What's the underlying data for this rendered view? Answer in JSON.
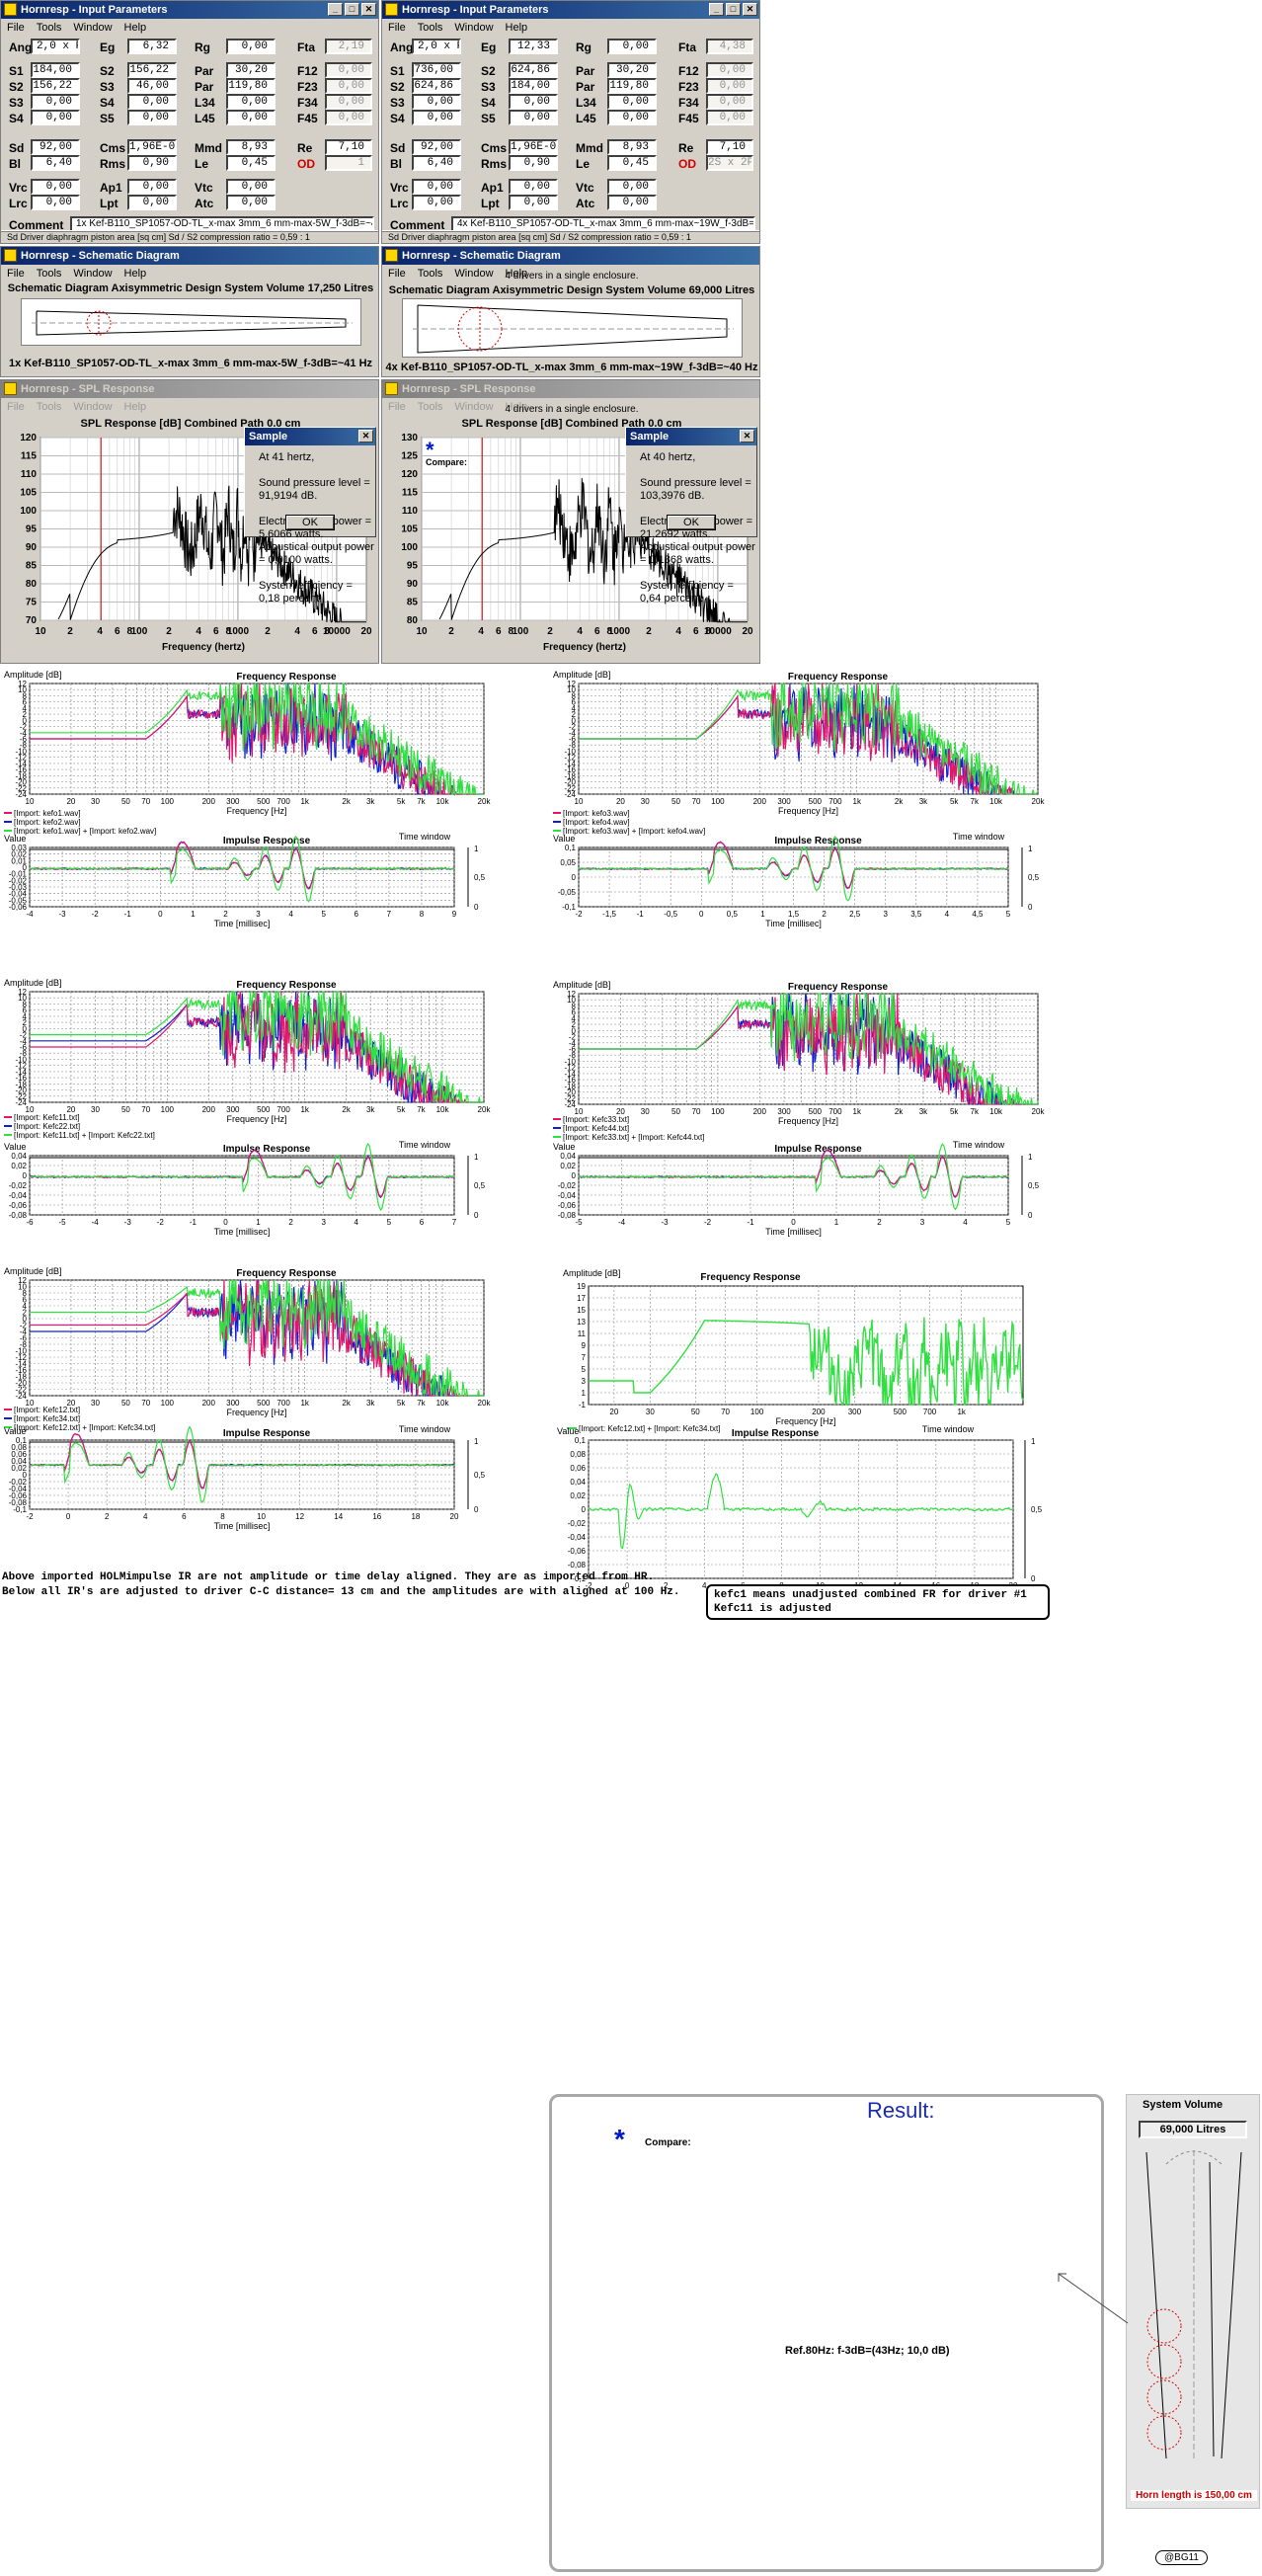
{
  "input_left": {
    "title": "Hornresp - Input Parameters",
    "menu": [
      "File",
      "Tools",
      "Window",
      "Help"
    ],
    "fields": {
      "Ang": "2,0 x Pi",
      "Eg": "6,32",
      "Rg": "0,00",
      "Fta": "2,19",
      "S1": "184,00",
      "S2b": "156,22",
      "Par1": "30,20",
      "F12": "0,00",
      "S2": "156,22",
      "S3": "46,00",
      "Par2": "119,80",
      "F23": "0,00",
      "S3r": "0,00",
      "S4": "0,00",
      "L34": "0,00",
      "F34": "0,00",
      "S4r": "0,00",
      "S5": "0,00",
      "L45": "0,00",
      "F45": "0,00",
      "Sd": "92,00",
      "Cms": "1,96E-03",
      "Mmd": "8,93",
      "Re": "7,10",
      "Bl": "6,40",
      "Rms": "0,90",
      "Le": "0,45",
      "OD": "1",
      "Vrc": "0,00",
      "Ap1": "0,00",
      "Vtc": "0,00",
      "Lrc": "0,00",
      "Lpt": "0,00",
      "Atc": "0,00"
    },
    "comment": "1x Kef-B110_SP1057-OD-TL_x-max 3mm_6 mm-max-5W_f-3dB=~41 Hz",
    "status": "Sd  Driver diaphragm piston area  [sq cm]   Sd / S2 compression ratio = 0,59 : 1"
  },
  "input_right": {
    "title": "Hornresp - Input Parameters",
    "menu": [
      "File",
      "Tools",
      "Window",
      "Help"
    ],
    "fields": {
      "Ang": "2,0 x Pi",
      "Eg": "12,33",
      "Rg": "0,00",
      "Fta": "4,38",
      "S1": "736,00",
      "S2b": "624,86",
      "Par1": "30,20",
      "F12": "0,00",
      "S2": "624,86",
      "S3": "184,00",
      "Par2": "119,80",
      "F23": "0,00",
      "S3r": "0,00",
      "S4": "0,00",
      "L34": "0,00",
      "F34": "0,00",
      "S4r": "0,00",
      "S5": "0,00",
      "L45": "0,00",
      "F45": "0,00",
      "Sd": "92,00",
      "Cms": "1,96E-03",
      "Mmd": "8,93",
      "Re": "7,10",
      "Bl": "6,40",
      "Rms": "0,90",
      "Le": "0,45",
      "OD": "2S x 2P",
      "Vrc": "0,00",
      "Ap1": "0,00",
      "Vtc": "0,00",
      "Lrc": "0,00",
      "Lpt": "0,00",
      "Atc": "0,00"
    },
    "comment": "4x Kef-B110_SP1057-OD-TL_x-max 3mm_6 mm-max~19W_f-3dB=~40 Hz",
    "status": "Sd  Driver diaphragm piston area  [sq cm]   Sd / S2 compression ratio = 0,59 : 1"
  },
  "labels": {
    "Ang": "Ang",
    "Eg": "Eg",
    "Rg": "Rg",
    "Fta": "Fta",
    "S1": "S1",
    "S2": "S2",
    "S3": "S3",
    "S4": "S4",
    "S5": "S5",
    "Par": "Par",
    "F12": "F12",
    "F23": "F23",
    "F34": "F34",
    "F45": "F45",
    "L34": "L34",
    "L45": "L45",
    "Sd": "Sd",
    "Cms": "Cms",
    "Mmd": "Mmd",
    "Re": "Re",
    "Bl": "Bl",
    "Rms": "Rms",
    "Le": "Le",
    "OD": "OD",
    "Vrc": "Vrc",
    "Ap1": "Ap1",
    "Vtc": "Vtc",
    "Lrc": "Lrc",
    "Lpt": "Lpt",
    "Atc": "Atc",
    "Comment": "Comment"
  },
  "schem_left": {
    "title": "Hornresp - Schematic Diagram",
    "menu": [
      "File",
      "Tools",
      "Window",
      "Help"
    ],
    "heading": "Schematic Diagram    Axisymmetric Design    System Volume 17,250 Litres",
    "caption": "1x Kef-B110_SP1057-OD-TL_x-max 3mm_6 mm-max-5W_f-3dB=~41 Hz"
  },
  "schem_right": {
    "title": "Hornresp - Schematic Diagram",
    "menu": [
      "File",
      "Tools",
      "Window",
      "Help"
    ],
    "heading1": "4 drivers in a single enclosure.",
    "heading2": "Schematic Diagram    Axisymmetric Design    System Volume 69,000 Litres",
    "caption": "4x Kef-B110_SP1057-OD-TL_x-max 3mm_6 mm-max~19W_f-3dB=~40 Hz"
  },
  "spl_left": {
    "title": "Hornresp - SPL Response",
    "menu": [
      "File",
      "Tools",
      "Window",
      "Help"
    ],
    "heading": "SPL Response  [dB]    Combined    Path 0,0 cm",
    "xlabel": "Frequency (hertz)",
    "yticks": [
      "120",
      "115",
      "110",
      "105",
      "100",
      "95",
      "90",
      "85",
      "80",
      "75",
      "70"
    ],
    "xticks": [
      "10",
      "2",
      "4",
      "6",
      "8",
      "100",
      "2",
      "4",
      "6",
      "8",
      "1000",
      "2",
      "4",
      "6",
      "8",
      "10000",
      "20"
    ],
    "dialog": {
      "title": "Sample",
      "l1": "At 41 hertz,",
      "l2": "Sound pressure level = 91,9194 dB.",
      "l3": "Electrical input power = 5,6066 watts.",
      "l4": "Acoustical output power = 0,0100 watts.",
      "l5": "System efficiency = 0,18 percent.",
      "ok": "OK"
    }
  },
  "spl_right": {
    "title": "Hornresp - SPL Response",
    "menu": [
      "File",
      "Tools",
      "Window",
      "Help"
    ],
    "heading1": "4 drivers in a single enclosure.",
    "heading": "SPL Response  [dB]    Combined    Path 0,0 cm",
    "xlabel": "Frequency (hertz)",
    "compare": "Compare:",
    "yticks": [
      "130",
      "125",
      "120",
      "115",
      "110",
      "105",
      "100",
      "95",
      "90",
      "85",
      "80"
    ],
    "xticks": [
      "10",
      "2",
      "4",
      "6",
      "8",
      "100",
      "2",
      "4",
      "6",
      "8",
      "1000",
      "2",
      "4",
      "6",
      "8",
      "10000",
      "20"
    ],
    "dialog": {
      "title": "Sample",
      "l1": "At 40 hertz,",
      "l2": "Sound pressure level = 103,3976 dB.",
      "l3": "Electrical input power = 21,2692 watts.",
      "l4": "Acoustical output power = 0,1368 watts.",
      "l5": "System efficiency = 0,64 percent.",
      "ok": "OK"
    }
  },
  "fr_common": {
    "title": "Frequency Response",
    "ylabel": "Amplitude [dB]",
    "xlabel": "Frequency [Hz]",
    "ir_title": "Impulse Response",
    "ir_ylabel": "Value",
    "ir_xlabel": "Time [millisec]",
    "tw": "Time window",
    "xticks": [
      "10",
      "20",
      "30",
      "50",
      "70",
      "100",
      "200",
      "300",
      "500",
      "700",
      "1k",
      "2k",
      "3k",
      "5k",
      "7k",
      "10k",
      "20k"
    ]
  },
  "fr1": {
    "legend": [
      "[Import: kefo1.wav]",
      "[Import: kefo2.wav]",
      "[Import: kefo1.wav] + [Import: kefo2.wav]"
    ],
    "ir_xticks": [
      "-4",
      "-3",
      "-2",
      "-1",
      "0",
      "1",
      "2",
      "3",
      "4",
      "5",
      "6",
      "7",
      "8",
      "9"
    ]
  },
  "fr2": {
    "legend": [
      "[Import: kefo3.wav]",
      "[Import: kefo4.wav]",
      "[Import: kefo3.wav] + [Import: kefo4.wav]"
    ],
    "ir_xticks": [
      "-2",
      "-1,5",
      "-1",
      "-0,5",
      "0",
      "0,5",
      "1",
      "1,5",
      "2",
      "2,5",
      "3",
      "3,5",
      "4",
      "4,5",
      "5"
    ]
  },
  "fr3": {
    "legend": [
      "[Import: Kefc11.txt]",
      "[Import: Kefc22.txt]",
      "[Import: Kefc11.txt] + [Import: Kefc22.txt]"
    ],
    "ir_xticks": [
      "-6",
      "-5",
      "-4",
      "-3",
      "-2",
      "-1",
      "0",
      "1",
      "2",
      "3",
      "4",
      "5",
      "6",
      "7"
    ]
  },
  "fr4": {
    "legend": [
      "[Import: Kefc33.txt]",
      "[Import: Kefc44.txt]",
      "[Import: Kefc33.txt] + [Import: Kefc44.txt]"
    ],
    "ir_xticks": [
      "-5",
      "-4",
      "-3",
      "-2",
      "-1",
      "0",
      "1",
      "2",
      "3",
      "4",
      "5"
    ]
  },
  "fr5": {
    "legend": [
      "[Import: Kefc12.txt]",
      "[Import: Kefc34.txt]",
      "[Import: Kefc12.txt] + [Import: Kefc34.txt]"
    ],
    "ir_xticks": [
      "-2",
      "0",
      "2",
      "4",
      "6",
      "8",
      "10",
      "12",
      "14",
      "16",
      "18",
      "20"
    ]
  },
  "fr6": {
    "result": "Result:",
    "compare": "Compare:",
    "legend": "[Import: Kefc12.txt] + [Import: Kefc34.txt]",
    "ref": "Ref.80Hz: f-3dB=(43Hz; 10,0 dB)",
    "xticks": [
      "20",
      "30",
      "50",
      "70",
      "100",
      "200",
      "300",
      "500",
      "700",
      "1k"
    ],
    "yticks": [
      "19",
      "17",
      "15",
      "13",
      "11",
      "9",
      "7",
      "5",
      "3",
      "1",
      "-1"
    ],
    "ir_xticks": [
      "-2",
      "0",
      "2",
      "4",
      "6",
      "8",
      "10",
      "12",
      "14",
      "16",
      "18",
      "20"
    ]
  },
  "note_left": "Above imported  HOLMimpulse IR are not amplitude or time delay aligned. They are as imported from HR.\nBelow all IR's are adjusted to driver C-C distance= 13 cm and the amplitudes are with aligned at 100 Hz.",
  "note_right": "kefc1 means unadjusted combined FR for driver #1\nKefc11 is adjusted",
  "sysvol": {
    "label": "System Volume",
    "value": "69,000 Litres",
    "horn": "Horn length is 150,00 cm"
  },
  "signature": "@BG11",
  "colors": {
    "magenta": "#e0186c",
    "blue": "#1020d0",
    "green": "#30e040"
  }
}
